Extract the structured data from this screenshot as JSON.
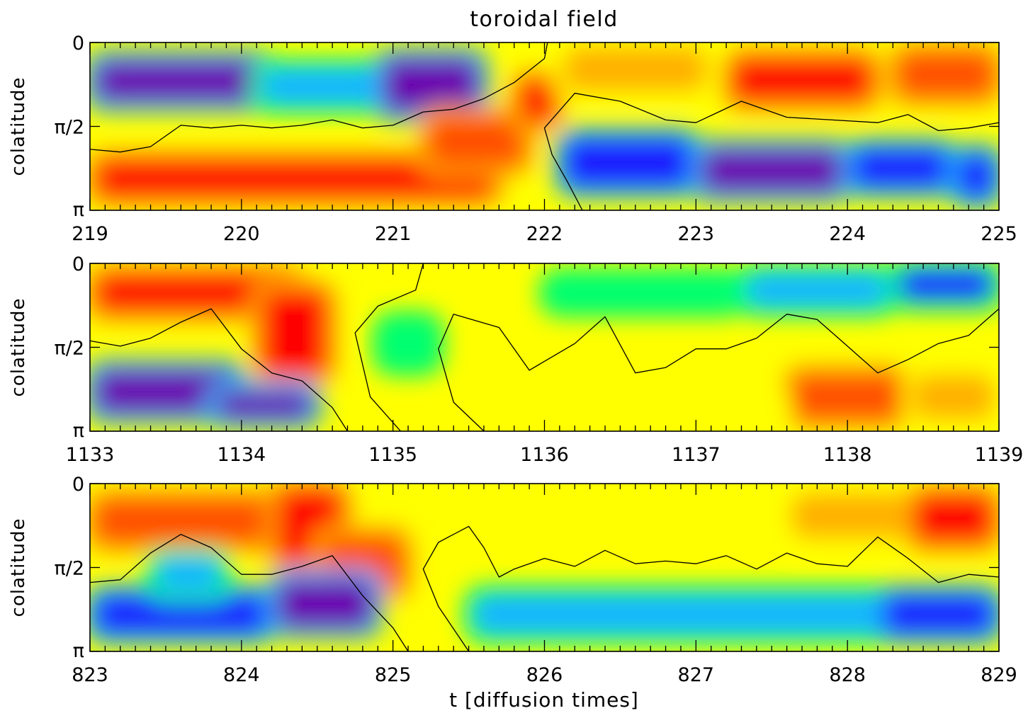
{
  "figure": {
    "title": "toroidal field",
    "xlabel": "t [diffusion times]",
    "colorscale": [
      "#6a00b0",
      "#1a1aff",
      "#14b4ff",
      "#00ff70",
      "#c8ff00",
      "#ffff00",
      "#ffb000",
      "#ff5000",
      "#ff0000"
    ]
  },
  "chart_data": [
    {
      "type": "heatmap",
      "ylabel": "colatitude",
      "xlim": [
        219,
        225
      ],
      "ylim": [
        0,
        3.14159
      ],
      "x_ticks": [
        "219",
        "220",
        "221",
        "222",
        "223",
        "224",
        "225"
      ],
      "y_ticks": [
        "0",
        "π/2",
        "π"
      ],
      "blobs": [
        {
          "t0": 219.0,
          "t1": 220.2,
          "th0": 0.25,
          "th1": 1.2,
          "value": -0.9
        },
        {
          "t0": 220.1,
          "t1": 221.0,
          "th0": 0.4,
          "th1": 1.25,
          "value": -0.55
        },
        {
          "t0": 220.9,
          "t1": 221.6,
          "th0": 0.2,
          "th1": 1.4,
          "value": -1.0
        },
        {
          "t0": 219.0,
          "t1": 221.7,
          "th0": 2.1,
          "th1": 3.0,
          "value": 0.95
        },
        {
          "t0": 221.2,
          "t1": 221.9,
          "th0": 1.3,
          "th1": 2.4,
          "value": 0.85
        },
        {
          "t0": 221.8,
          "t1": 222.1,
          "th0": 0.6,
          "th1": 1.6,
          "value": 0.9
        },
        {
          "t0": 222.1,
          "t1": 223.0,
          "th0": 1.7,
          "th1": 2.8,
          "value": -0.75
        },
        {
          "t0": 223.0,
          "t1": 224.0,
          "th0": 1.9,
          "th1": 2.9,
          "value": -0.95
        },
        {
          "t0": 224.0,
          "t1": 224.7,
          "th0": 1.9,
          "th1": 2.8,
          "value": -0.7
        },
        {
          "t0": 224.7,
          "t1": 225.0,
          "th0": 2.0,
          "th1": 3.0,
          "value": -0.85
        },
        {
          "t0": 222.1,
          "t1": 223.1,
          "th0": 0.0,
          "th1": 1.0,
          "value": 0.45
        },
        {
          "t0": 223.2,
          "t1": 224.2,
          "th0": 0.2,
          "th1": 1.2,
          "value": 0.95
        },
        {
          "t0": 224.3,
          "t1": 225.0,
          "th0": 0.1,
          "th1": 1.1,
          "value": 0.75
        }
      ],
      "zero_contours": [
        {
          "t": [
            219.0,
            219.2,
            219.4,
            219.6,
            219.8,
            220.0,
            220.2,
            220.4,
            220.6,
            220.8,
            221.0,
            221.2,
            221.4,
            221.6,
            221.8,
            222.0,
            222.02
          ],
          "theta": [
            2.0,
            2.05,
            1.95,
            1.55,
            1.6,
            1.55,
            1.6,
            1.55,
            1.45,
            1.6,
            1.55,
            1.3,
            1.25,
            1.05,
            0.75,
            0.3,
            0.0
          ]
        },
        {
          "t": [
            222.25,
            222.15,
            222.05,
            222.0,
            222.2,
            222.5,
            222.8,
            223.0,
            223.3,
            223.6,
            223.9,
            224.2,
            224.4,
            224.6,
            224.8,
            225.0
          ],
          "theta": [
            3.14,
            2.6,
            2.1,
            1.6,
            0.95,
            1.1,
            1.45,
            1.5,
            1.1,
            1.4,
            1.45,
            1.5,
            1.35,
            1.65,
            1.6,
            1.5
          ]
        }
      ]
    },
    {
      "type": "heatmap",
      "ylabel": "colatitude",
      "xlim": [
        1133,
        1139
      ],
      "ylim": [
        0,
        3.14159
      ],
      "x_ticks": [
        "1133",
        "1134",
        "1135",
        "1136",
        "1137",
        "1138",
        "1139"
      ],
      "y_ticks": [
        "0",
        "π/2",
        "π"
      ],
      "blobs": [
        {
          "t0": 1133.0,
          "t1": 1134.4,
          "th0": 0.1,
          "th1": 1.0,
          "value": 0.95
        },
        {
          "t0": 1134.1,
          "t1": 1134.6,
          "th0": 0.4,
          "th1": 2.2,
          "value": 0.9
        },
        {
          "t0": 1133.0,
          "t1": 1134.0,
          "th0": 1.9,
          "th1": 2.9,
          "value": -0.95
        },
        {
          "t0": 1133.8,
          "t1": 1134.5,
          "th0": 2.3,
          "th1": 3.0,
          "value": -0.9
        },
        {
          "t0": 1134.9,
          "t1": 1135.3,
          "th0": 1.0,
          "th1": 2.0,
          "value": -0.35
        },
        {
          "t0": 1136.0,
          "t1": 1137.3,
          "th0": 0.2,
          "th1": 0.9,
          "value": -0.25
        },
        {
          "t0": 1137.3,
          "t1": 1138.3,
          "th0": 0.1,
          "th1": 0.9,
          "value": -0.55
        },
        {
          "t0": 1138.3,
          "t1": 1139.0,
          "th0": 0.0,
          "th1": 0.8,
          "value": -0.65
        },
        {
          "t0": 1137.6,
          "t1": 1138.4,
          "th0": 2.0,
          "th1": 3.0,
          "value": 0.8
        },
        {
          "t0": 1138.4,
          "t1": 1139.0,
          "th0": 2.0,
          "th1": 3.0,
          "value": 0.55
        },
        {
          "t0": 1135.9,
          "t1": 1137.6,
          "th0": 2.4,
          "th1": 3.0,
          "value": 0.25
        }
      ],
      "zero_contours": [
        {
          "t": [
            1133.0,
            1133.2,
            1133.4,
            1133.6,
            1133.8,
            1134.0,
            1134.2,
            1134.4,
            1134.6,
            1134.7
          ],
          "theta": [
            1.45,
            1.55,
            1.4,
            1.1,
            0.85,
            1.6,
            2.05,
            2.2,
            2.7,
            3.14
          ]
        },
        {
          "t": [
            1135.05,
            1134.85,
            1134.75,
            1134.9,
            1135.15,
            1135.2
          ],
          "theta": [
            3.14,
            2.5,
            1.3,
            0.8,
            0.5,
            0.0
          ]
        },
        {
          "t": [
            1135.6,
            1135.4,
            1135.3,
            1135.4,
            1135.7,
            1135.9,
            1136.2,
            1136.4,
            1136.6,
            1136.8,
            1137.0,
            1137.2,
            1137.4,
            1137.6,
            1137.8,
            1138.0,
            1138.2,
            1138.4,
            1138.6,
            1138.8,
            1139.0
          ],
          "theta": [
            3.14,
            2.6,
            1.6,
            0.95,
            1.2,
            2.0,
            1.5,
            1.0,
            2.05,
            1.95,
            1.6,
            1.6,
            1.4,
            0.95,
            1.05,
            1.55,
            2.05,
            1.8,
            1.5,
            1.35,
            0.85
          ]
        }
      ]
    },
    {
      "type": "heatmap",
      "ylabel": "colatitude",
      "xlim": [
        823,
        829
      ],
      "ylim": [
        0,
        3.14159
      ],
      "x_ticks": [
        "823",
        "824",
        "825",
        "826",
        "827",
        "828",
        "829"
      ],
      "y_ticks": [
        "0",
        "π/2",
        "π"
      ],
      "blobs": [
        {
          "t0": 823.0,
          "t1": 824.3,
          "th0": 0.2,
          "th1": 1.2,
          "value": 0.85
        },
        {
          "t0": 824.2,
          "t1": 824.7,
          "th0": 0.0,
          "th1": 1.6,
          "value": 0.95
        },
        {
          "t0": 824.5,
          "t1": 825.1,
          "th0": 0.9,
          "th1": 2.1,
          "value": 0.8
        },
        {
          "t0": 823.0,
          "t1": 824.2,
          "th0": 2.0,
          "th1": 2.9,
          "value": -0.85
        },
        {
          "t0": 824.2,
          "t1": 824.9,
          "th0": 1.7,
          "th1": 2.8,
          "value": -0.9
        },
        {
          "t0": 823.4,
          "t1": 823.9,
          "th0": 1.3,
          "th1": 2.1,
          "value": -0.45
        },
        {
          "t0": 825.5,
          "t1": 828.3,
          "th0": 2.0,
          "th1": 2.9,
          "value": -0.4
        },
        {
          "t0": 828.2,
          "t1": 829.0,
          "th0": 2.0,
          "th1": 2.9,
          "value": -0.8
        },
        {
          "t0": 825.8,
          "t1": 827.5,
          "th0": 0.2,
          "th1": 1.0,
          "value": 0.3
        },
        {
          "t0": 827.6,
          "t1": 828.5,
          "th0": 0.1,
          "th1": 1.1,
          "value": 0.55
        },
        {
          "t0": 828.4,
          "t1": 829.0,
          "th0": 0.1,
          "th1": 1.2,
          "value": 0.9
        }
      ],
      "zero_contours": [
        {
          "t": [
            823.0,
            823.2,
            823.4,
            823.6,
            823.8,
            824.0,
            824.2,
            824.4,
            824.6,
            824.8,
            825.0,
            825.1
          ],
          "theta": [
            1.85,
            1.8,
            1.3,
            0.95,
            1.2,
            1.7,
            1.7,
            1.55,
            1.35,
            2.1,
            2.7,
            3.14
          ]
        },
        {
          "t": [
            825.5,
            825.3,
            825.2,
            825.3,
            825.5,
            825.6,
            825.7,
            825.8,
            826.0,
            826.2,
            826.4,
            826.6,
            826.8,
            827.0,
            827.2,
            827.4,
            827.6,
            827.8,
            828.0,
            828.2,
            828.4,
            828.6,
            828.8,
            829.0
          ],
          "theta": [
            3.14,
            2.3,
            1.6,
            1.1,
            0.8,
            1.2,
            1.75,
            1.6,
            1.4,
            1.55,
            1.25,
            1.5,
            1.45,
            1.5,
            1.35,
            1.6,
            1.3,
            1.5,
            1.55,
            1.0,
            1.4,
            1.85,
            1.7,
            1.75
          ]
        }
      ]
    }
  ]
}
